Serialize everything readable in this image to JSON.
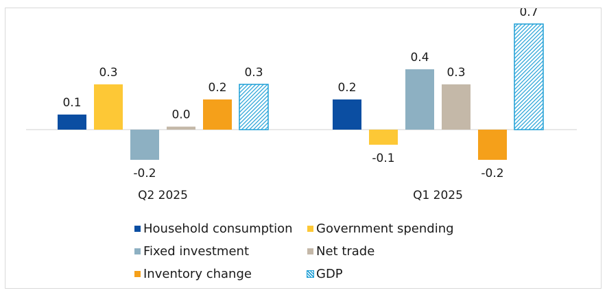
{
  "chart_data": {
    "type": "bar",
    "title": "",
    "xlabel": "",
    "ylabel": "",
    "ylim": [
      -0.2,
      0.7
    ],
    "categories": [
      "Q2 2025",
      "Q1 2025"
    ],
    "series": [
      {
        "name": "Household consumption",
        "color": "#0b4ea2",
        "pattern": "solid",
        "values": [
          0.1,
          0.2
        ],
        "labels": [
          "0.1",
          "0.2"
        ]
      },
      {
        "name": "Government spending",
        "color": "#fdc836",
        "pattern": "solid",
        "values": [
          0.3,
          -0.1
        ],
        "labels": [
          "0.3",
          "-0.1"
        ]
      },
      {
        "name": "Fixed investment",
        "color": "#8db0c2",
        "pattern": "solid",
        "values": [
          -0.2,
          0.4
        ],
        "labels": [
          "-0.2",
          "0.4"
        ]
      },
      {
        "name": "Net trade",
        "color": "#c4b8a8",
        "pattern": "solid",
        "values": [
          0.02,
          0.3
        ],
        "labels": [
          "0.0",
          "0.3"
        ]
      },
      {
        "name": "Inventory change",
        "color": "#f5a01a",
        "pattern": "solid",
        "values": [
          0.2,
          -0.2
        ],
        "labels": [
          "0.2",
          "-0.2"
        ]
      },
      {
        "name": "GDP",
        "color": "#1e9fd6",
        "pattern": "hatched",
        "values": [
          0.3,
          0.7
        ],
        "labels": [
          "0.3",
          "0.7"
        ]
      }
    ]
  }
}
